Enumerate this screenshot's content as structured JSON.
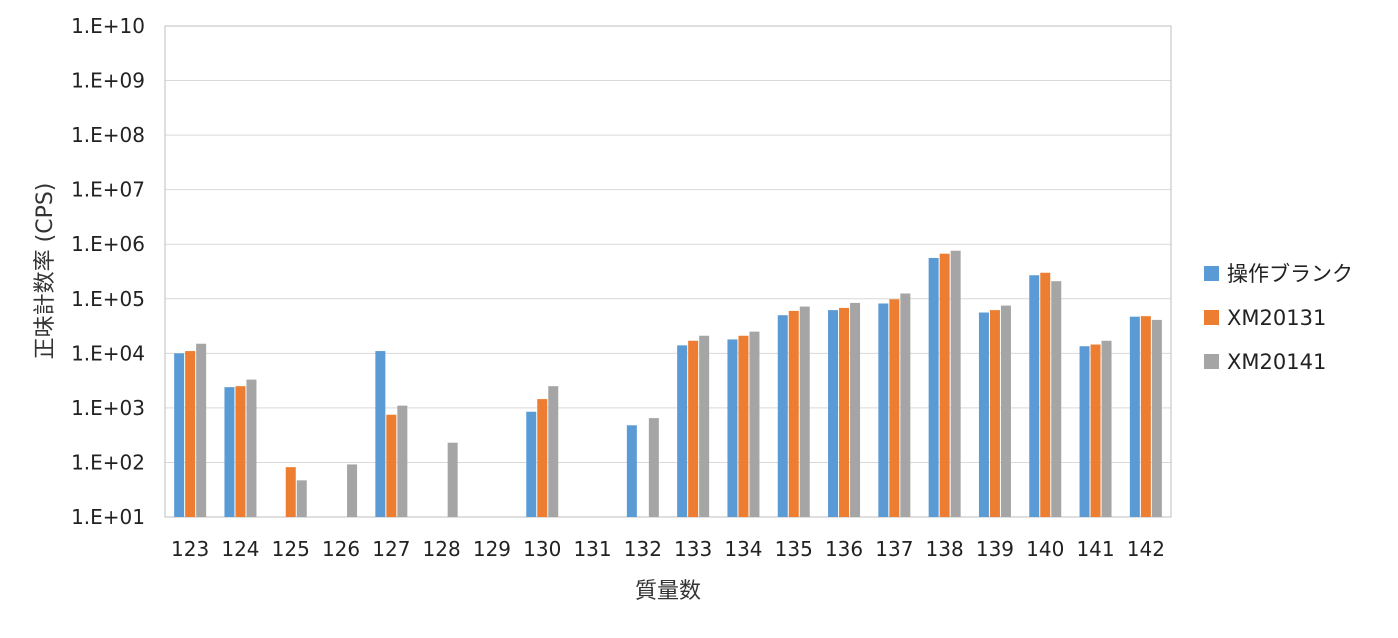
{
  "chart_data": {
    "type": "bar",
    "title": "",
    "xlabel": "質量数",
    "ylabel": "正味計数率 (CPS)",
    "yscale": "log",
    "ylim": [
      10,
      10000000000
    ],
    "y_tick_labels": [
      "1.E+01",
      "1.E+02",
      "1.E+03",
      "1.E+04",
      "1.E+05",
      "1.E+06",
      "1.E+07",
      "1.E+08",
      "1.E+09",
      "1.E+10"
    ],
    "grid": true,
    "legend_position": "right",
    "categories": [
      "123",
      "124",
      "125",
      "126",
      "127",
      "128",
      "129",
      "130",
      "131",
      "132",
      "133",
      "134",
      "135",
      "136",
      "137",
      "138",
      "139",
      "140",
      "141",
      "142"
    ],
    "series": [
      {
        "name": "操作ブランク",
        "color": "#5b9bd5",
        "values": [
          10000,
          2400,
          null,
          null,
          11000,
          null,
          null,
          850,
          null,
          480,
          14000,
          18000,
          50000,
          62000,
          82000,
          560000,
          56000,
          270000,
          13500,
          47000
        ]
      },
      {
        "name": "XM20131",
        "color": "#ed7d31",
        "values": [
          11000,
          2500,
          82,
          null,
          750,
          null,
          null,
          1450,
          null,
          null,
          17000,
          21000,
          60000,
          68000,
          98000,
          670000,
          62000,
          300000,
          14500,
          48000
        ]
      },
      {
        "name": "XM20141",
        "color": "#a5a5a5",
        "values": [
          15000,
          3300,
          47,
          92,
          1100,
          230,
          null,
          2500,
          null,
          650,
          21000,
          25000,
          72000,
          84000,
          125000,
          760000,
          75000,
          210000,
          17000,
          41000
        ]
      }
    ]
  }
}
